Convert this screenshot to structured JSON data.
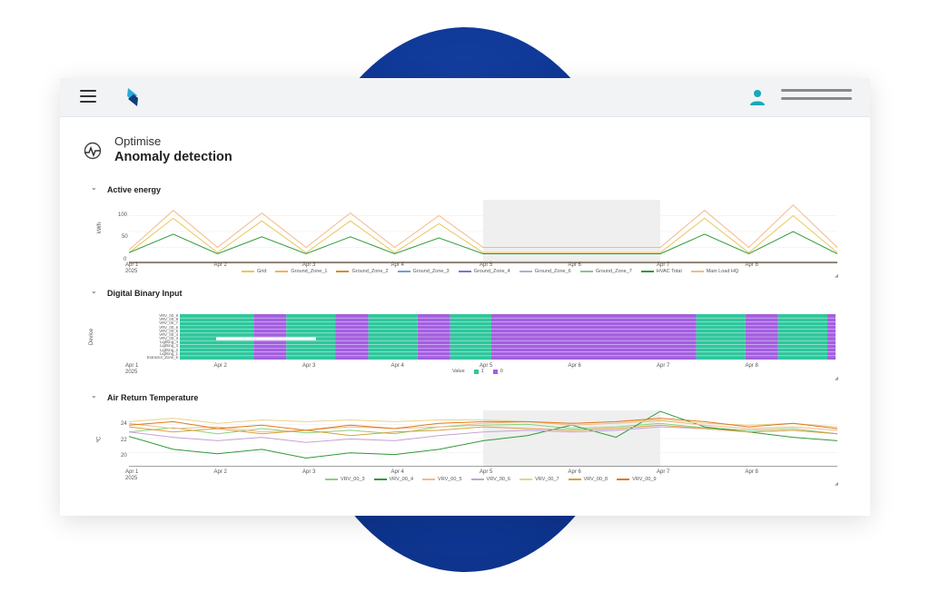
{
  "app": {
    "breadcrumb": "Optimise",
    "title": "Anomaly detection"
  },
  "icons": {
    "menu": "hamburger-menu-icon",
    "logo": "brand-logo",
    "user": "user-icon",
    "page": "anomaly-pulse-icon"
  },
  "colors": {
    "accent": "#17a9b8",
    "binary_one": "#2ec79c",
    "binary_zero": "#a35fe0",
    "background_blob": "#0f3896"
  },
  "x_axis": {
    "ticks": [
      "Apr 1",
      "Apr 2",
      "Apr 3",
      "Apr 4",
      "Apr 5",
      "Apr 6",
      "Apr 7",
      "Apr 8"
    ],
    "year": "2025"
  },
  "sections": {
    "energy": {
      "title": "Active energy",
      "ylabel": "kWh",
      "yticks": [
        "100",
        "50",
        "0"
      ],
      "legend": [
        {
          "name": "Grid",
          "color": "#e8c85a"
        },
        {
          "name": "Ground_Zone_1",
          "color": "#f2b35a"
        },
        {
          "name": "Ground_Zone_2",
          "color": "#d98a2b"
        },
        {
          "name": "Ground_Zone_3",
          "color": "#6f9ed8"
        },
        {
          "name": "Ground_Zone_4",
          "color": "#8f6cc4"
        },
        {
          "name": "Ground_Zone_6",
          "color": "#c8a3d6"
        },
        {
          "name": "Ground_Zone_7",
          "color": "#8bc48a"
        },
        {
          "name": "HVAC Total",
          "color": "#2f9a3a"
        },
        {
          "name": "Main Load HQ",
          "color": "#f4b98a"
        }
      ]
    },
    "binary": {
      "title": "Digital Binary Input",
      "ylabel": "Device",
      "legend_label": "Value",
      "legend": [
        {
          "name": "1",
          "color": "#2ec79c"
        },
        {
          "name": "0",
          "color": "#a35fe0"
        }
      ],
      "devices": [
        "VRV_00_9",
        "VRV_00_8",
        "VRV_00_7",
        "VRV_00_6",
        "VRV_00_5",
        "VRV_00_4",
        "VRV_00_3",
        "Lighting_4",
        "Lighting_3",
        "Lighting_2",
        "Lighting_1",
        "Extractor_Zone_6"
      ]
    },
    "temperature": {
      "title": "Air Return Temperature",
      "ylabel": "ºC",
      "yticks": [
        "24",
        "22",
        "20"
      ],
      "legend": [
        {
          "name": "VRV_00_3",
          "color": "#8bd17c"
        },
        {
          "name": "VRV_00_4",
          "color": "#2f9a3a"
        },
        {
          "name": "VRV_00_5",
          "color": "#f4b98a"
        },
        {
          "name": "VRV_00_6",
          "color": "#c9a0d8"
        },
        {
          "name": "VRV_00_7",
          "color": "#e8d38a"
        },
        {
          "name": "VRV_00_8",
          "color": "#d9a23a"
        },
        {
          "name": "VRV_00_9",
          "color": "#e0791f"
        }
      ]
    }
  },
  "chart_data": [
    {
      "type": "line",
      "title": "Active energy",
      "ylabel": "kWh",
      "ylim": [
        0,
        120
      ],
      "x": [
        "Apr 1",
        "Apr 1.5",
        "Apr 2",
        "Apr 2.5",
        "Apr 3",
        "Apr 3.5",
        "Apr 4",
        "Apr 4.5",
        "Apr 5",
        "Apr 5.5",
        "Apr 6",
        "Apr 6.5",
        "Apr 7",
        "Apr 7.5",
        "Apr 8",
        "Apr 8.5",
        "Apr 9"
      ],
      "series": [
        {
          "name": "Main Load HQ",
          "values": [
            25,
            100,
            30,
            95,
            30,
            95,
            30,
            90,
            30,
            30,
            30,
            30,
            30,
            100,
            30,
            110,
            30
          ]
        },
        {
          "name": "Grid",
          "values": [
            20,
            85,
            20,
            80,
            20,
            80,
            20,
            75,
            20,
            20,
            20,
            20,
            20,
            85,
            20,
            90,
            20
          ]
        },
        {
          "name": "HVAC Total",
          "values": [
            20,
            55,
            18,
            50,
            18,
            50,
            18,
            48,
            18,
            18,
            18,
            18,
            18,
            55,
            18,
            60,
            18
          ]
        },
        {
          "name": "Ground_Zone_1",
          "values": [
            3,
            3,
            3,
            3,
            3,
            3,
            3,
            3,
            3,
            3,
            3,
            3,
            3,
            3,
            3,
            3,
            3
          ]
        },
        {
          "name": "Ground_Zone_2",
          "values": [
            2,
            2,
            2,
            2,
            2,
            2,
            2,
            2,
            2,
            2,
            2,
            2,
            2,
            2,
            2,
            2,
            2
          ]
        },
        {
          "name": "Ground_Zone_3",
          "values": [
            1,
            1,
            1,
            1,
            1,
            1,
            1,
            1,
            1,
            1,
            1,
            1,
            1,
            1,
            1,
            1,
            1
          ]
        }
      ]
    },
    {
      "type": "heatmap",
      "title": "Digital Binary Input",
      "ylabel": "Device",
      "bands": [
        {
          "from": "Apr 1",
          "to": "Apr 1.9",
          "value": 1
        },
        {
          "from": "Apr 1.9",
          "to": "Apr 2.3",
          "value": 0
        },
        {
          "from": "Apr 2.3",
          "to": "Apr 2.9",
          "value": 1
        },
        {
          "from": "Apr 2.9",
          "to": "Apr 3.3",
          "value": 0
        },
        {
          "from": "Apr 3.3",
          "to": "Apr 3.9",
          "value": 1
        },
        {
          "from": "Apr 3.9",
          "to": "Apr 4.3",
          "value": 0
        },
        {
          "from": "Apr 4.3",
          "to": "Apr 4.8",
          "value": 1
        },
        {
          "from": "Apr 4.8",
          "to": "Apr 7.3",
          "value": 0
        },
        {
          "from": "Apr 7.3",
          "to": "Apr 7.9",
          "value": 1
        },
        {
          "from": "Apr 7.9",
          "to": "Apr 8.3",
          "value": 0
        },
        {
          "from": "Apr 8.3",
          "to": "Apr 8.9",
          "value": 1
        },
        {
          "from": "Apr 8.9",
          "to": "Apr 9",
          "value": 0
        }
      ]
    },
    {
      "type": "line",
      "title": "Air Return Temperature",
      "ylabel": "ºC",
      "ylim": [
        19,
        25.5
      ],
      "x": [
        "Apr 1",
        "Apr 1.5",
        "Apr 2",
        "Apr 2.5",
        "Apr 3",
        "Apr 3.5",
        "Apr 4",
        "Apr 4.5",
        "Apr 5",
        "Apr 5.5",
        "Apr 6",
        "Apr 6.5",
        "Apr 7",
        "Apr 7.5",
        "Apr 8",
        "Apr 8.5",
        "Apr 9"
      ],
      "series": [
        {
          "name": "VRV_00_3",
          "values": [
            23,
            23.5,
            22.8,
            23.4,
            22.9,
            23.2,
            22.8,
            23.6,
            23.8,
            23.9,
            23.4,
            23.6,
            24,
            23.5,
            23.2,
            23.4,
            22.8
          ]
        },
        {
          "name": "VRV_00_4",
          "values": [
            22.5,
            21,
            20.5,
            21,
            20,
            20.6,
            20.4,
            21,
            22,
            22.6,
            23.8,
            22.4,
            25.4,
            23.6,
            23,
            22.4,
            22
          ]
        },
        {
          "name": "VRV_00_5",
          "values": [
            24,
            23.4,
            23.6,
            23,
            23.2,
            23.6,
            23.4,
            23.6,
            24,
            24.2,
            23.8,
            24,
            24.3,
            23.8,
            23.4,
            23.6,
            23.2
          ]
        },
        {
          "name": "VRV_00_6",
          "values": [
            23,
            22.4,
            22,
            22.4,
            21.8,
            22.2,
            22,
            22.6,
            23,
            23.2,
            23,
            23.2,
            23.6,
            23.4,
            23,
            23.2,
            22.8
          ]
        },
        {
          "name": "VRV_00_7",
          "values": [
            24.2,
            24.6,
            24,
            24.4,
            24.2,
            24.4,
            24.2,
            24.4,
            24.4,
            24.2,
            24,
            24.2,
            24.4,
            24,
            23.8,
            24,
            23.6
          ]
        },
        {
          "name": "VRV_00_8",
          "values": [
            23.6,
            23,
            23.4,
            22.8,
            23.2,
            22.6,
            23,
            23.2,
            23.6,
            23.4,
            23.2,
            23.4,
            23.8,
            23.4,
            23,
            23.2,
            22.8
          ]
        },
        {
          "name": "VRV_00_9",
          "values": [
            23.8,
            24.2,
            23.4,
            23.8,
            23.2,
            23.8,
            23.4,
            24,
            24.2,
            24.2,
            24,
            24.2,
            24.6,
            24.2,
            23.6,
            24,
            23.4
          ]
        }
      ]
    }
  ]
}
